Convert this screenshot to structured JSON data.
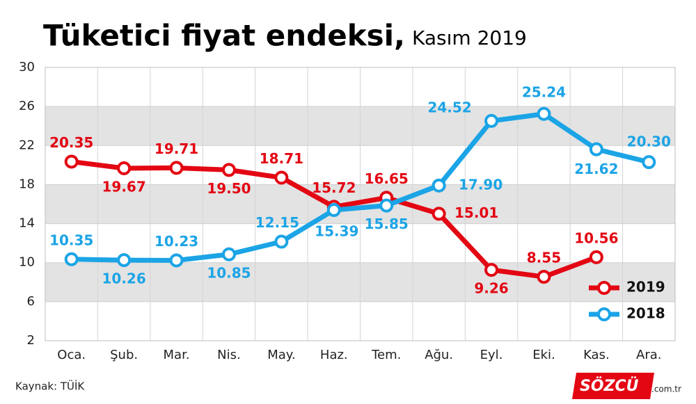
{
  "chart_data": {
    "type": "line",
    "title": "Tüketici fiyat endeksi,",
    "subtitle": "Kasım 2019",
    "categories": [
      "Oca.",
      "Şub.",
      "Mar.",
      "Nis.",
      "May.",
      "Haz.",
      "Tem.",
      "Ağu.",
      "Eyl.",
      "Eki.",
      "Kas.",
      "Ara."
    ],
    "series": [
      {
        "name": "2019",
        "color": "#e30613",
        "values": [
          20.35,
          19.67,
          19.71,
          19.5,
          18.71,
          15.72,
          16.65,
          15.01,
          9.26,
          8.55,
          10.56,
          null
        ],
        "value_labels": [
          "20.35",
          "19.67",
          "19.71",
          "19.50",
          "18.71",
          "15.72",
          "16.65",
          "15.01",
          "9.26",
          "8.55",
          "10.56",
          null
        ]
      },
      {
        "name": "2018",
        "color": "#1ba4e6",
        "values": [
          10.35,
          10.26,
          10.23,
          10.85,
          12.15,
          15.39,
          15.85,
          17.9,
          24.52,
          25.24,
          21.62,
          20.3
        ],
        "value_labels": [
          "10.35",
          "10.26",
          "10.23",
          "10.85",
          "12.15",
          "15.39",
          "15.85",
          "17.90",
          "24.52",
          "25.24",
          "21.62",
          "20.30"
        ]
      }
    ],
    "ylim": [
      2,
      30
    ],
    "yticks": [
      2,
      6,
      10,
      14,
      18,
      22,
      26,
      30
    ],
    "grid": true,
    "legend": "lower right",
    "source": "Kaynak: TÜİK",
    "logo": "SÖZCÜ",
    "logo_suffix": ".com.tr"
  }
}
